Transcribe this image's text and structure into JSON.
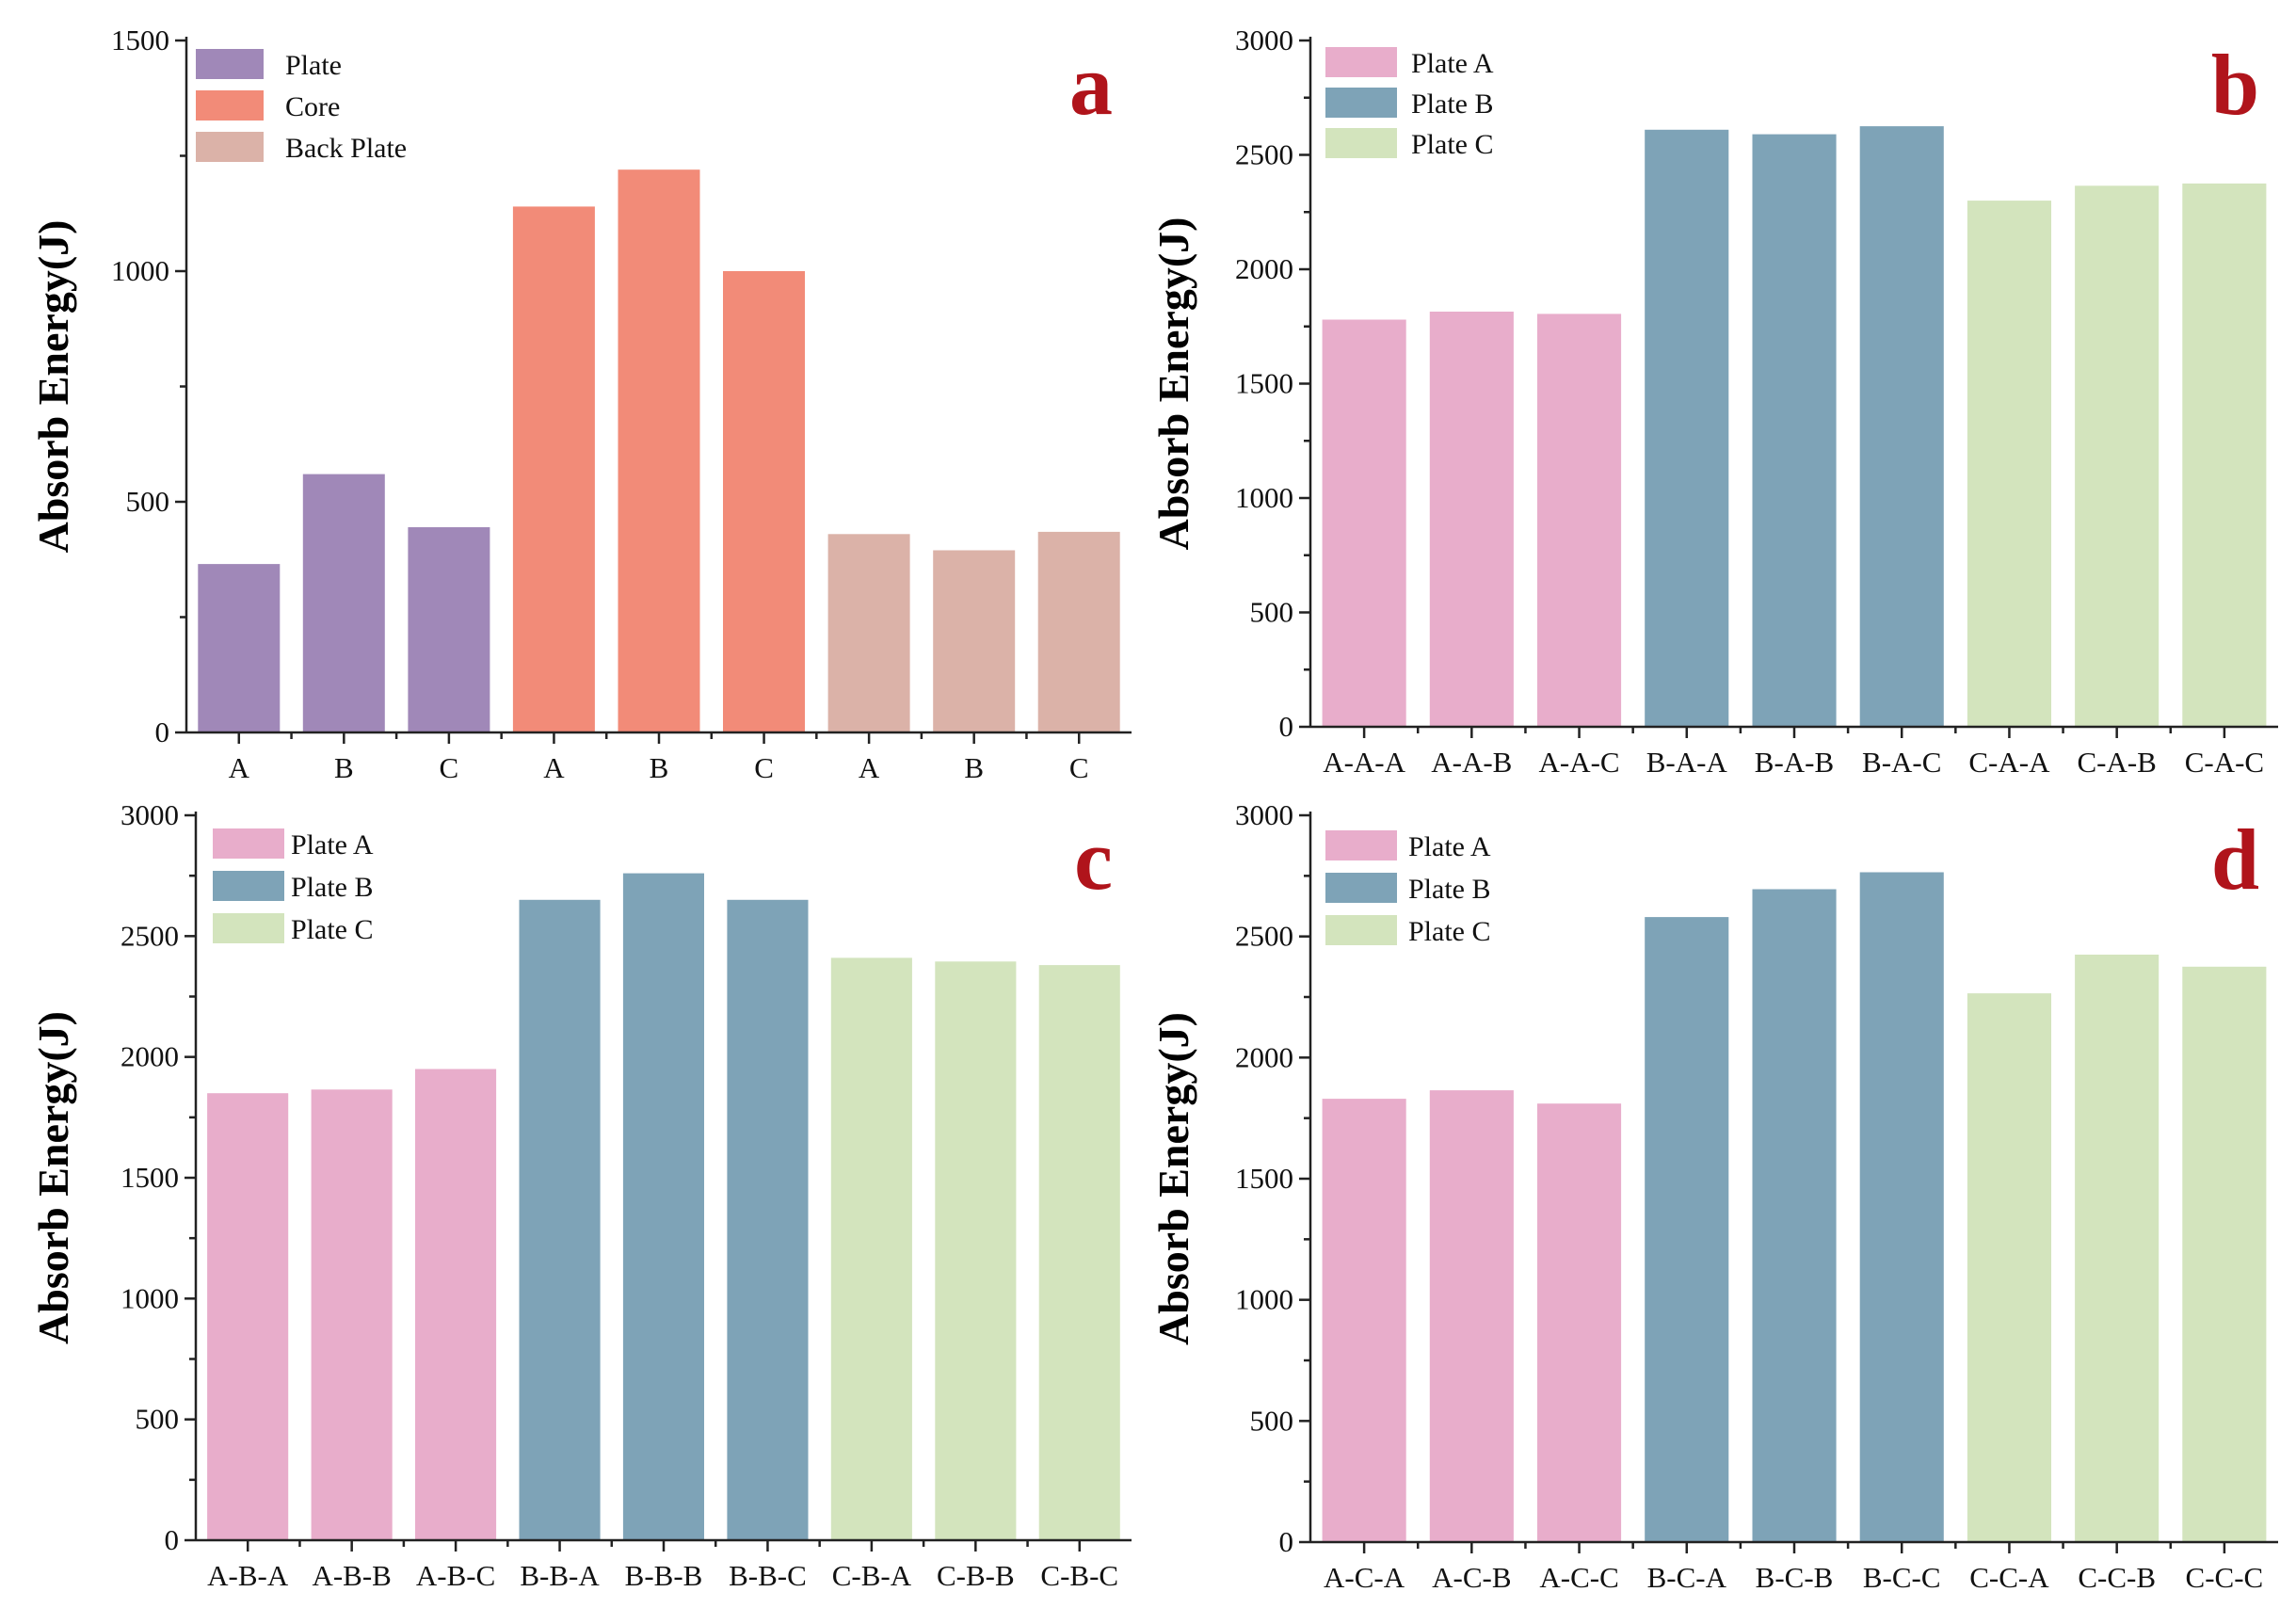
{
  "chart_data": [
    {
      "type": "bar",
      "panel_letter": "a",
      "ylabel": "Absorb Energy(J)",
      "ylim": [
        0,
        1500
      ],
      "yticks": [
        0,
        500,
        1000,
        1500
      ],
      "categories": [
        "A",
        "B",
        "C",
        "A",
        "B",
        "C",
        "A",
        "B",
        "C"
      ],
      "values": [
        365,
        560,
        445,
        1140,
        1220,
        1000,
        430,
        395,
        435
      ],
      "bar_groups": [
        0,
        0,
        0,
        1,
        1,
        1,
        2,
        2,
        2
      ],
      "legend": [
        {
          "label": "Plate",
          "color": "#a088b8"
        },
        {
          "label": "Core",
          "color": "#f28b78"
        },
        {
          "label": "Back Plate",
          "color": "#dbb2a8"
        }
      ],
      "legend_position": "top-left"
    },
    {
      "type": "bar",
      "panel_letter": "b",
      "ylabel": "Absorb Energy(J)",
      "ylim": [
        0,
        3000
      ],
      "yticks": [
        0,
        500,
        1000,
        1500,
        2000,
        2500,
        3000
      ],
      "categories": [
        "A-A-A",
        "A-A-B",
        "A-A-C",
        "B-A-A",
        "B-A-B",
        "B-A-C",
        "C-A-A",
        "C-A-B",
        "C-A-C"
      ],
      "values": [
        1780,
        1815,
        1805,
        2610,
        2590,
        2625,
        2300,
        2365,
        2375
      ],
      "bar_groups": [
        0,
        0,
        0,
        1,
        1,
        1,
        2,
        2,
        2
      ],
      "legend": [
        {
          "label": "Plate A",
          "color": "#e8adcb"
        },
        {
          "label": "Plate B",
          "color": "#7ea3b7"
        },
        {
          "label": "Plate C",
          "color": "#d3e4bd"
        }
      ],
      "legend_position": "top-left"
    },
    {
      "type": "bar",
      "panel_letter": "c",
      "ylabel": "Absorb Energy(J)",
      "ylim": [
        0,
        3000
      ],
      "yticks": [
        0,
        500,
        1000,
        1500,
        2000,
        2500,
        3000
      ],
      "categories": [
        "A-B-A",
        "A-B-B",
        "A-B-C",
        "B-B-A",
        "B-B-B",
        "B-B-C",
        "C-B-A",
        "C-B-B",
        "C-B-C"
      ],
      "values": [
        1850,
        1865,
        1950,
        2650,
        2760,
        2650,
        2410,
        2395,
        2380
      ],
      "bar_groups": [
        0,
        0,
        0,
        1,
        1,
        1,
        2,
        2,
        2
      ],
      "legend": [
        {
          "label": "Plate A",
          "color": "#e8adcb"
        },
        {
          "label": "Plate B",
          "color": "#7ea3b7"
        },
        {
          "label": "Plate C",
          "color": "#d3e4bd"
        }
      ],
      "legend_position": "top-left"
    },
    {
      "type": "bar",
      "panel_letter": "d",
      "ylabel": "Absorb Energy(J)",
      "ylim": [
        0,
        3000
      ],
      "yticks": [
        0,
        500,
        1000,
        1500,
        2000,
        2500,
        3000
      ],
      "categories": [
        "A-C-A",
        "A-C-B",
        "A-C-C",
        "B-C-A",
        "B-C-B",
        "B-C-C",
        "C-C-A",
        "C-C-B",
        "C-C-C"
      ],
      "values": [
        1830,
        1865,
        1810,
        2580,
        2695,
        2765,
        2265,
        2425,
        2375
      ],
      "bar_groups": [
        0,
        0,
        0,
        1,
        1,
        1,
        2,
        2,
        2
      ],
      "legend": [
        {
          "label": "Plate A",
          "color": "#e8adcb"
        },
        {
          "label": "Plate B",
          "color": "#7ea3b7"
        },
        {
          "label": "Plate C",
          "color": "#d3e4bd"
        }
      ],
      "legend_position": "top-left"
    }
  ]
}
